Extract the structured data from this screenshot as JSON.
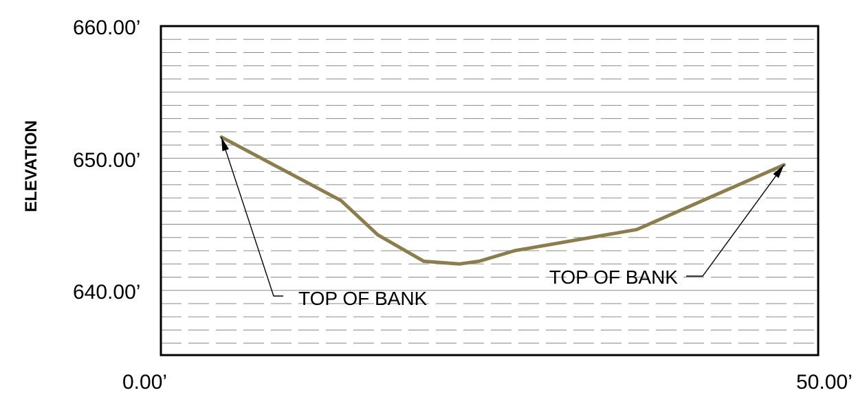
{
  "chart_data": {
    "type": "line",
    "title": "",
    "xlabel": "",
    "ylabel": "ELEVATION",
    "xlim": [
      0,
      50
    ],
    "ylim": [
      635,
      660
    ],
    "x_ticks": [
      {
        "value": 0,
        "label": "0.00’"
      },
      {
        "value": 50,
        "label": "50.00’"
      }
    ],
    "y_ticks": [
      {
        "value": 660,
        "label": "660.00’"
      },
      {
        "value": 650,
        "label": "650.00’"
      },
      {
        "value": 640,
        "label": "640.00’"
      }
    ],
    "grid": {
      "major_y_step": 5,
      "minor_y_step": 1,
      "major_style": "solid",
      "minor_style": "dashed"
    },
    "series": [
      {
        "color": "#8b7d4c",
        "points": [
          {
            "x": 4.6,
            "y": 651.6
          },
          {
            "x": 13.7,
            "y": 646.8
          },
          {
            "x": 16.5,
            "y": 644.2
          },
          {
            "x": 20.0,
            "y": 642.2
          },
          {
            "x": 22.7,
            "y": 642.0
          },
          {
            "x": 24.2,
            "y": 642.2
          },
          {
            "x": 26.9,
            "y": 643.0
          },
          {
            "x": 36.2,
            "y": 644.6
          },
          {
            "x": 47.4,
            "y": 649.5
          }
        ]
      }
    ],
    "annotations": [
      {
        "text": "TOP OF BANK",
        "point": {
          "x": 4.6,
          "y": 651.6
        }
      },
      {
        "text": "TOP OF BANK",
        "point": {
          "x": 47.4,
          "y": 649.5
        }
      }
    ]
  }
}
